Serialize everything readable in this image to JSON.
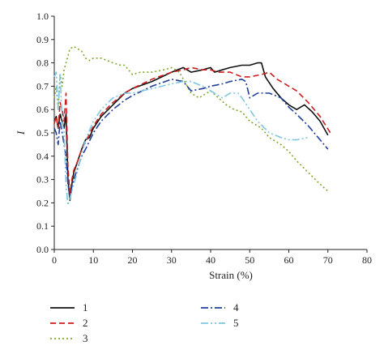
{
  "chart_data": {
    "type": "line",
    "xlabel": "Strain (%)",
    "ylabel": "I",
    "xlim": [
      0,
      80
    ],
    "ylim": [
      0,
      1.0
    ],
    "xticks": [
      "0",
      "10",
      "20",
      "30",
      "40",
      "50",
      "60",
      "70",
      "80"
    ],
    "yticks": [
      "0.0",
      "0.1",
      "0.2",
      "0.3",
      "0.4",
      "0.5",
      "0.6",
      "0.7",
      "0.8",
      "0.9",
      "1.0"
    ],
    "grid": false,
    "legend_position": "bottom",
    "series": [
      {
        "name": "1",
        "color": "#111111",
        "dash": "solid",
        "x": [
          0,
          0.5,
          1,
          1.5,
          2,
          2.5,
          3,
          3.5,
          4,
          4.5,
          5,
          6,
          7,
          8,
          9,
          10,
          12,
          15,
          18,
          20,
          25,
          30,
          33,
          35,
          38,
          40,
          41,
          43,
          45,
          48,
          50,
          52,
          53,
          54,
          56,
          58,
          60,
          62,
          64,
          66,
          68,
          70
        ],
        "y": [
          0.55,
          0.57,
          0.52,
          0.58,
          0.55,
          0.52,
          0.58,
          0.3,
          0.21,
          0.28,
          0.33,
          0.38,
          0.43,
          0.47,
          0.48,
          0.52,
          0.57,
          0.62,
          0.67,
          0.69,
          0.72,
          0.76,
          0.78,
          0.76,
          0.77,
          0.78,
          0.76,
          0.77,
          0.78,
          0.79,
          0.79,
          0.8,
          0.8,
          0.74,
          0.69,
          0.65,
          0.62,
          0.6,
          0.62,
          0.59,
          0.55,
          0.49
        ]
      },
      {
        "name": "2",
        "color": "#cc1f1f",
        "dash": "7,4",
        "x": [
          0,
          0.5,
          1,
          1.5,
          2,
          2.5,
          3,
          3.5,
          4,
          4.5,
          5,
          6,
          7,
          8,
          10,
          12,
          15,
          18,
          20,
          25,
          30,
          33,
          35,
          38,
          40,
          42,
          45,
          48,
          50,
          53,
          55,
          57,
          60,
          62,
          65,
          68,
          71
        ],
        "y": [
          0.54,
          0.57,
          0.52,
          0.63,
          0.6,
          0.55,
          0.67,
          0.35,
          0.24,
          0.3,
          0.34,
          0.38,
          0.43,
          0.46,
          0.53,
          0.58,
          0.63,
          0.67,
          0.69,
          0.73,
          0.76,
          0.77,
          0.78,
          0.77,
          0.77,
          0.76,
          0.76,
          0.74,
          0.74,
          0.75,
          0.76,
          0.73,
          0.7,
          0.68,
          0.63,
          0.57,
          0.49
        ]
      },
      {
        "name": "3",
        "color": "#7fa92b",
        "dash": "2,3",
        "x": [
          0,
          0.5,
          1,
          1.5,
          2,
          2.5,
          3,
          3.5,
          4,
          5,
          6,
          7,
          8,
          9,
          10,
          12,
          15,
          17,
          18,
          20,
          22,
          25,
          28,
          30,
          32,
          35,
          37,
          40,
          42,
          44,
          46,
          48,
          50,
          53,
          55,
          58,
          60,
          62,
          65,
          68,
          70
        ],
        "y": [
          0.65,
          0.7,
          0.6,
          0.75,
          0.7,
          0.77,
          0.8,
          0.83,
          0.86,
          0.87,
          0.86,
          0.85,
          0.82,
          0.81,
          0.82,
          0.82,
          0.8,
          0.79,
          0.79,
          0.75,
          0.76,
          0.76,
          0.77,
          0.78,
          0.76,
          0.67,
          0.65,
          0.68,
          0.65,
          0.62,
          0.6,
          0.59,
          0.55,
          0.52,
          0.48,
          0.45,
          0.42,
          0.38,
          0.33,
          0.28,
          0.25
        ]
      },
      {
        "name": "4",
        "color": "#1f3f9a",
        "dash": "9,3,2,3",
        "x": [
          0,
          0.5,
          1,
          1.5,
          2,
          2.5,
          3,
          3.5,
          4,
          4.5,
          5,
          6,
          7,
          8,
          10,
          12,
          15,
          18,
          20,
          25,
          30,
          33,
          35,
          38,
          40,
          43,
          45,
          48,
          49,
          50,
          52,
          55,
          58,
          60,
          62,
          65,
          68,
          70
        ],
        "y": [
          0.52,
          0.5,
          0.45,
          0.55,
          0.5,
          0.45,
          0.4,
          0.28,
          0.22,
          0.27,
          0.3,
          0.35,
          0.4,
          0.43,
          0.5,
          0.55,
          0.6,
          0.64,
          0.66,
          0.7,
          0.73,
          0.72,
          0.68,
          0.69,
          0.7,
          0.71,
          0.72,
          0.73,
          0.72,
          0.65,
          0.67,
          0.67,
          0.65,
          0.61,
          0.58,
          0.53,
          0.47,
          0.43
        ]
      },
      {
        "name": "5",
        "color": "#7fc6e0",
        "dash": "9,3,2,3,2,3",
        "x": [
          0,
          0.5,
          1,
          1.5,
          2,
          2.5,
          3,
          3.5,
          4,
          5,
          6,
          7,
          8,
          10,
          12,
          15,
          18,
          20,
          25,
          30,
          33,
          35,
          38,
          40,
          43,
          45,
          47,
          48,
          50,
          52,
          55,
          58,
          60,
          62,
          65
        ],
        "y": [
          0.74,
          0.76,
          0.6,
          0.75,
          0.55,
          0.5,
          0.28,
          0.19,
          0.22,
          0.28,
          0.34,
          0.41,
          0.47,
          0.55,
          0.6,
          0.65,
          0.67,
          0.67,
          0.69,
          0.71,
          0.72,
          0.72,
          0.7,
          0.68,
          0.65,
          0.67,
          0.67,
          0.65,
          0.6,
          0.55,
          0.5,
          0.48,
          0.47,
          0.47,
          0.48
        ]
      }
    ]
  }
}
